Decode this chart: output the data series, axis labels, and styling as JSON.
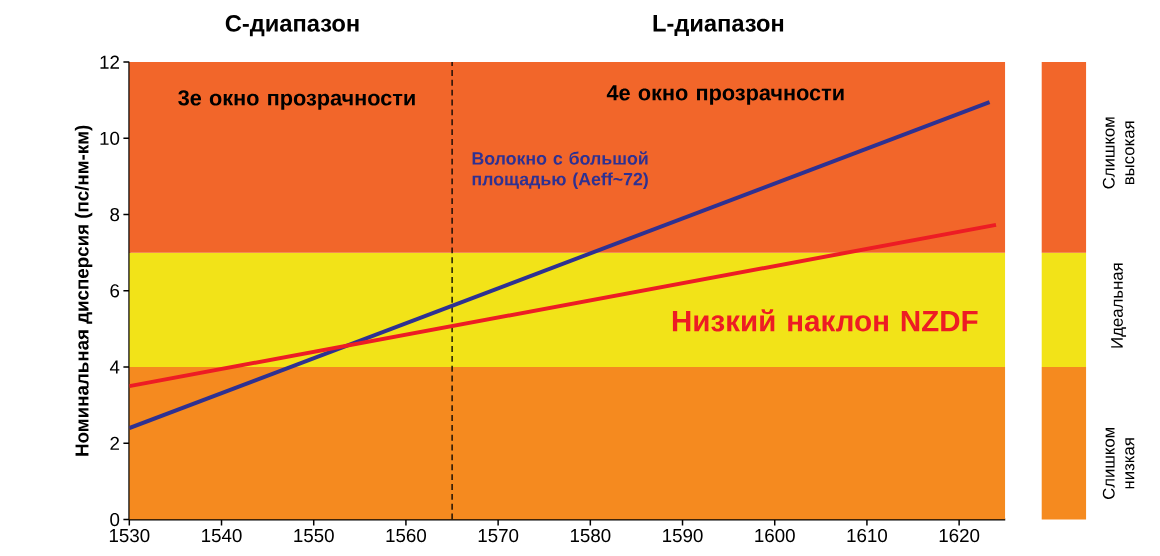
{
  "chart_data": {
    "type": "line",
    "ylabel": "Номинальная дисперсия (пс/нм-км)",
    "xlim": [
      1530,
      1625
    ],
    "xticks": [
      1530,
      1540,
      1550,
      1560,
      1570,
      1580,
      1590,
      1600,
      1610,
      1620
    ],
    "ylim": [
      0,
      12
    ],
    "yticks": [
      0,
      2,
      4,
      6,
      8,
      10,
      12
    ],
    "series": [
      {
        "name": "Волокно с большой площадью (Aeff~72)",
        "color": "#2e3192",
        "x": [
          1530,
          1623.3
        ],
        "values": [
          2.4,
          10.95
        ]
      },
      {
        "name": "Низкий наклон NZDF",
        "color": "#ed1c24",
        "x": [
          1530,
          1624
        ],
        "values": [
          3.5,
          7.73
        ]
      }
    ],
    "bands": [
      {
        "axis": "y",
        "from": 0,
        "to": 4,
        "label": null,
        "color": "#f58a1f"
      },
      {
        "axis": "y",
        "from": 4,
        "to": 7,
        "label": null,
        "color": "#f2e318"
      },
      {
        "axis": "y",
        "from": 7,
        "to": 12,
        "label": null,
        "color": "#f2662a"
      }
    ],
    "ref_lines": [
      {
        "axis": "x",
        "value": 1565,
        "label": null,
        "color": "#000000",
        "line_style": "dashed"
      }
    ],
    "annotations": [
      "3е окно прозрачности",
      "4е окно прозрачности",
      "C-диапазон",
      "L-диапазон",
      "Слишком высокая",
      "Идеальная",
      "Слишком низкая"
    ],
    "marker": "none",
    "line_style": "solid",
    "grid": false
  }
}
